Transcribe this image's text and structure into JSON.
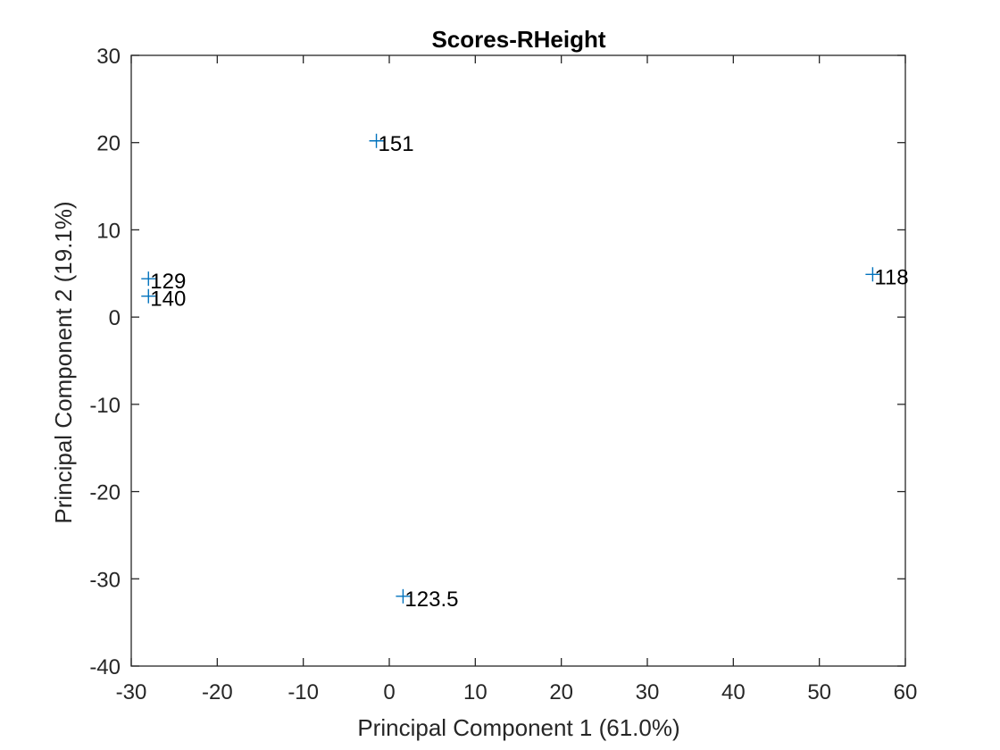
{
  "chart_data": {
    "type": "scatter",
    "title": "Scores-RHeight",
    "xlabel": "Principal Component 1 (61.0%)",
    "ylabel": "Principal Component 2 (19.1%)",
    "xlim": [
      -30,
      60
    ],
    "ylim": [
      -40,
      30
    ],
    "xticks": [
      -30,
      -20,
      -10,
      0,
      10,
      20,
      30,
      40,
      50,
      60
    ],
    "yticks": [
      -40,
      -30,
      -20,
      -10,
      0,
      10,
      20,
      30
    ],
    "grid": false,
    "marker": "+",
    "marker_color": "#0072BD",
    "points": [
      {
        "label": "151",
        "x": -1.5,
        "y": 20.2
      },
      {
        "label": "129",
        "x": -28,
        "y": 4.4
      },
      {
        "label": "140",
        "x": -28,
        "y": 2.4
      },
      {
        "label": "118",
        "x": 56.2,
        "y": 4.9
      },
      {
        "label": "123.5",
        "x": 1.6,
        "y": -32
      }
    ]
  }
}
